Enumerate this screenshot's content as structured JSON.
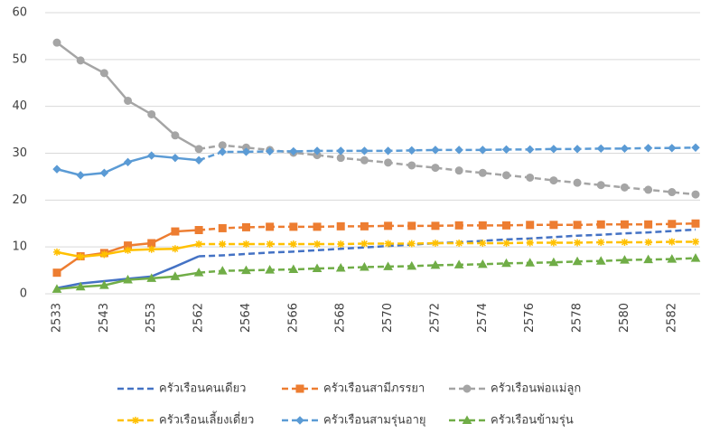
{
  "chart_data": {
    "type": "line",
    "categories": [
      "2533",
      null,
      "2543",
      null,
      "2553",
      null,
      "2562",
      null,
      "2564",
      null,
      "2566",
      null,
      "2568",
      null,
      "2570",
      null,
      "2572",
      null,
      "2574",
      null,
      "2576",
      null,
      "2578",
      null,
      "2580",
      null,
      "2582",
      null
    ],
    "ylim": [
      0,
      60
    ],
    "yticks": [
      0,
      10,
      20,
      30,
      40,
      50,
      60
    ],
    "grid": true,
    "legend": "bottom",
    "series": [
      {
        "name": "ครัวเรือนคนเดียว",
        "color": "#4472c4",
        "marker": "none",
        "values": [
          1.2,
          2.2,
          2.7,
          3.2,
          3.7,
          5.8,
          8.0,
          8.2,
          8.5,
          8.8,
          9.0,
          9.3,
          9.6,
          9.9,
          10.2,
          10.5,
          10.8,
          11.0,
          11.3,
          11.6,
          11.8,
          12.1,
          12.4,
          12.6,
          12.9,
          13.1,
          13.4,
          13.7
        ]
      },
      {
        "name": "ครัวเรือนสามีภรรยา",
        "color": "#ed7d31",
        "marker": "square",
        "values": [
          4.5,
          8.0,
          8.7,
          10.3,
          10.8,
          13.3,
          13.6,
          14.0,
          14.2,
          14.3,
          14.3,
          14.3,
          14.4,
          14.4,
          14.5,
          14.5,
          14.5,
          14.6,
          14.6,
          14.6,
          14.7,
          14.7,
          14.7,
          14.8,
          14.8,
          14.8,
          14.9,
          15.0
        ]
      },
      {
        "name": "ครัวเรือนพ่อแม่ลูก",
        "color": "#a5a5a5",
        "marker": "circle",
        "values": [
          53.6,
          49.8,
          47.1,
          41.2,
          38.3,
          33.8,
          30.9,
          31.7,
          31.2,
          30.7,
          30.1,
          29.6,
          29.0,
          28.5,
          28.0,
          27.4,
          26.9,
          26.3,
          25.8,
          25.3,
          24.8,
          24.2,
          23.7,
          23.2,
          22.7,
          22.2,
          21.7,
          21.2
        ]
      },
      {
        "name": "ครัวเรือนเลี้ยงเดี่ยว",
        "color": "#ffc000",
        "marker": "star",
        "values": [
          8.9,
          7.9,
          8.4,
          9.3,
          9.5,
          9.6,
          10.6,
          10.6,
          10.6,
          10.6,
          10.6,
          10.6,
          10.6,
          10.7,
          10.7,
          10.7,
          10.8,
          10.8,
          10.8,
          10.8,
          10.9,
          10.9,
          10.9,
          11.0,
          11.0,
          11.0,
          11.1,
          11.1
        ]
      },
      {
        "name": "ครัวเรือนสามรุ่นอายุ",
        "color": "#5b9bd5",
        "marker": "diamond",
        "values": [
          26.6,
          25.3,
          25.8,
          28.1,
          29.5,
          29.0,
          28.5,
          30.3,
          30.3,
          30.4,
          30.4,
          30.5,
          30.5,
          30.5,
          30.5,
          30.6,
          30.7,
          30.7,
          30.7,
          30.8,
          30.8,
          30.9,
          30.9,
          31.0,
          31.0,
          31.1,
          31.1,
          31.2
        ]
      },
      {
        "name": "ครัวเรือนข้ามรุ่น",
        "color": "#70ad47",
        "marker": "triangle",
        "values": [
          1.0,
          1.5,
          1.8,
          3.0,
          3.3,
          3.7,
          4.5,
          4.9,
          5.0,
          5.1,
          5.2,
          5.4,
          5.5,
          5.7,
          5.8,
          5.9,
          6.1,
          6.2,
          6.3,
          6.5,
          6.6,
          6.7,
          6.9,
          7.0,
          7.2,
          7.3,
          7.4,
          7.6
        ]
      }
    ]
  }
}
